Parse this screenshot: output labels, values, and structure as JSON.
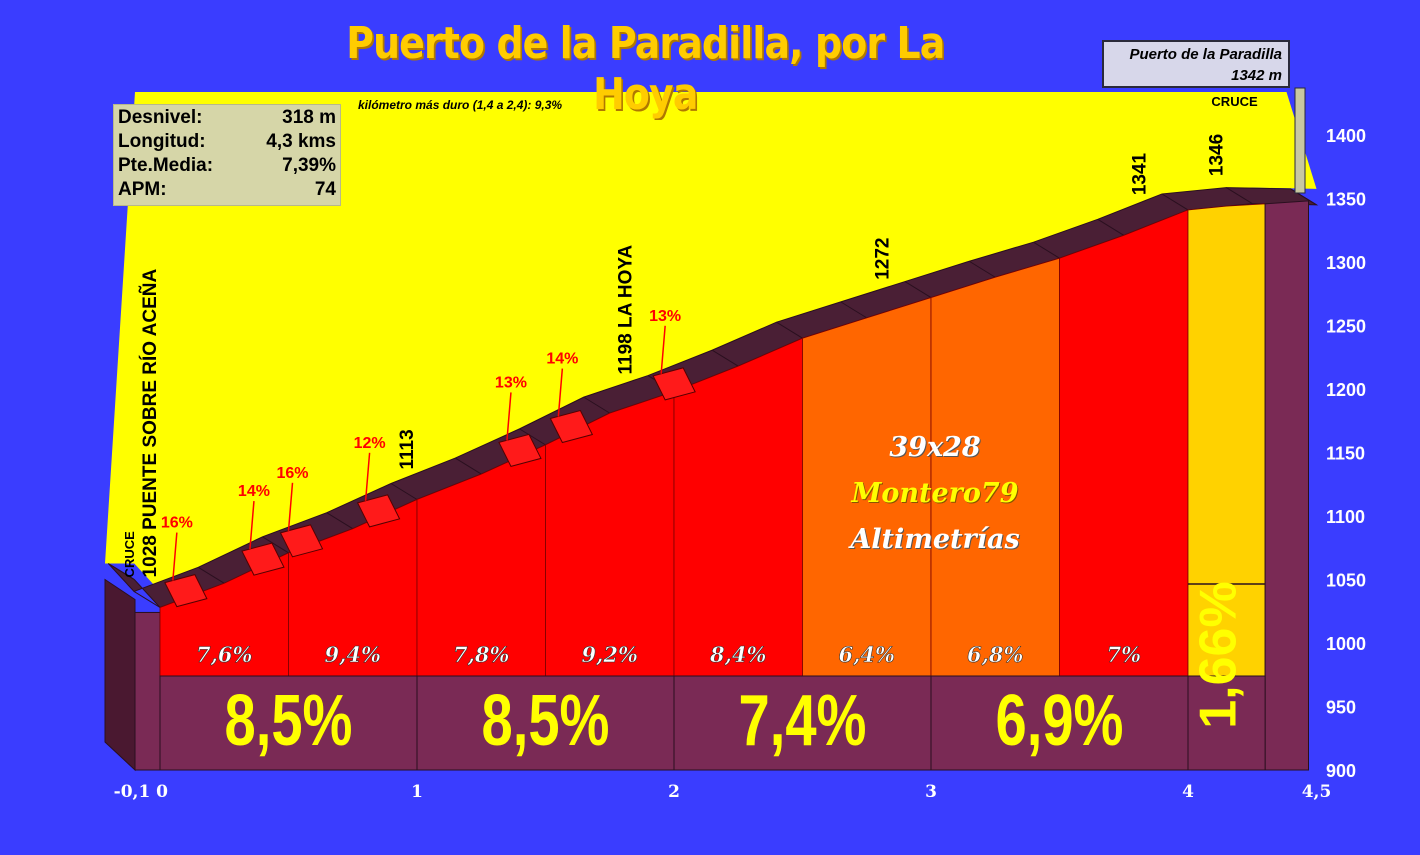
{
  "title": "Puerto de la Paradilla, por La Hoya",
  "stats": [
    {
      "label": "Desnivel:",
      "value": "318 m"
    },
    {
      "label": "Longitud:",
      "value": "4,3 kms"
    },
    {
      "label": "Pte.Media:",
      "value": "7,39%"
    },
    {
      "label": "APM:",
      "value": "74"
    }
  ],
  "hardest_km": "kilómetro más duro (1,4 a 2,4):  9,3%",
  "summit": {
    "name": "Puerto de la Paradilla",
    "altitude": "1342 m"
  },
  "watermark": {
    "line1": "39x28",
    "line2": "Montero79",
    "line3": "Altimetrías"
  },
  "colors": {
    "background": "#3a3dff",
    "sky": "#ffff00",
    "title": "#ffcc00",
    "segment_steep": "#ff0000",
    "segment_medium": "#ff6600",
    "segment_easy": "#ffd200",
    "base": "#7a2a55",
    "ridge": "#4a1f35",
    "highlight_ramp": "#ff1a1a",
    "ramp_label": "#ff0000"
  },
  "chart_data": {
    "type": "area",
    "title": "Puerto de la Paradilla, por La Hoya",
    "xlim": [
      -0.1,
      4.5
    ],
    "ylim": [
      900,
      1400
    ],
    "x_ticks": [
      "-0,1",
      "0",
      "1",
      "2",
      "3",
      "4",
      "4,5"
    ],
    "x_tick_values": [
      -0.1,
      0,
      1,
      2,
      3,
      4,
      4.5
    ],
    "y_ticks": [
      900,
      950,
      1000,
      1050,
      1100,
      1150,
      1200,
      1250,
      1300,
      1350,
      1400
    ],
    "profile": {
      "x": [
        -0.1,
        0,
        0.25,
        0.5,
        0.75,
        1,
        1.25,
        1.5,
        1.75,
        2,
        2.25,
        2.5,
        2.75,
        3,
        3.25,
        3.5,
        3.75,
        4,
        4.25,
        4.5
      ],
      "y": [
        1050,
        1028,
        1047,
        1071,
        1090,
        1113,
        1133,
        1156,
        1181,
        1198,
        1218,
        1240,
        1256,
        1272,
        1288,
        1303,
        1321,
        1341,
        1346,
        1345
      ]
    },
    "half_km_segments": [
      {
        "from": 0,
        "to": 0.5,
        "label": "7,6%",
        "color": "red"
      },
      {
        "from": 0.5,
        "to": 1,
        "label": "9,4%",
        "color": "red"
      },
      {
        "from": 1,
        "to": 1.5,
        "label": "7,8%",
        "color": "red"
      },
      {
        "from": 1.5,
        "to": 2,
        "label": "9,2%",
        "color": "red"
      },
      {
        "from": 2,
        "to": 2.5,
        "label": "8,4%",
        "color": "red"
      },
      {
        "from": 2.5,
        "to": 3,
        "label": "6,4%",
        "color": "orange"
      },
      {
        "from": 3,
        "to": 3.5,
        "label": "6,8%",
        "color": "orange"
      },
      {
        "from": 3.5,
        "to": 4,
        "label": "7%",
        "color": "red"
      },
      {
        "from": 4,
        "to": 4.3,
        "label": "",
        "color": "yellow"
      }
    ],
    "km_segments": [
      {
        "from": 0,
        "to": 1,
        "label": "8,5%"
      },
      {
        "from": 1,
        "to": 2,
        "label": "8,5%"
      },
      {
        "from": 2,
        "to": 3,
        "label": "7,4%"
      },
      {
        "from": 3,
        "to": 4,
        "label": "6,9%"
      },
      {
        "from": 4,
        "to": 4.3,
        "label": "1,66%"
      }
    ],
    "waypoints": [
      {
        "x": 0,
        "altitude": "1028",
        "name": "PUENTE SOBRE RÍO ACEÑA",
        "note": "CRUCE"
      },
      {
        "x": 1,
        "altitude": "1113",
        "name": "",
        "note": ""
      },
      {
        "x": 1.85,
        "altitude": "1198",
        "name": "LA HOYA",
        "note": ""
      },
      {
        "x": 2.85,
        "altitude": "1272",
        "name": "",
        "note": ""
      },
      {
        "x": 3.85,
        "altitude": "1341",
        "name": "",
        "note": ""
      },
      {
        "x": 4.15,
        "altitude": "1346",
        "name": "",
        "note": "CRUCE"
      }
    ],
    "ramps": [
      {
        "x": 0.05,
        "label": "16%"
      },
      {
        "x": 0.35,
        "label": "14%"
      },
      {
        "x": 0.5,
        "label": "16%"
      },
      {
        "x": 0.8,
        "label": "12%"
      },
      {
        "x": 1.35,
        "label": "13%"
      },
      {
        "x": 1.55,
        "label": "14%"
      },
      {
        "x": 1.95,
        "label": "13%"
      }
    ]
  }
}
